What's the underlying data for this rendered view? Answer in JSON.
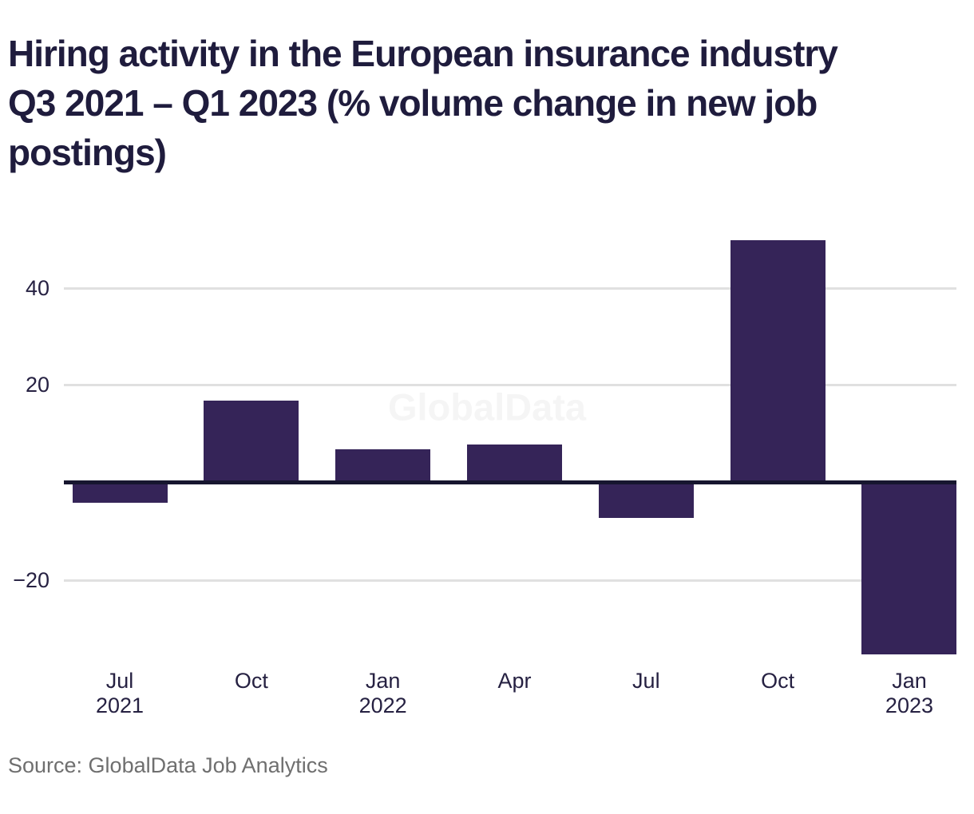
{
  "title_lines": [
    "Hiring activity in the European insurance industry",
    "Q3 2021 – Q1 2023 (% volume change in new job",
    "postings)"
  ],
  "watermark": {
    "text": "GlobalData"
  },
  "source": {
    "text": "Source: GlobalData Job Analytics"
  },
  "colors": {
    "background": "#ffffff",
    "bar": "#352458",
    "title": "#1f1c3d",
    "axis_label": "#262142",
    "gridline": "#e0e0e0",
    "baseline": "#17162f",
    "watermark": "#f5f5f5",
    "source_text": "#6f6f6f"
  },
  "chart_data": {
    "type": "bar",
    "title": "Hiring activity in the European insurance industry Q3 2021 – Q1 2023 (% volume change in new job postings)",
    "categories": [
      "Jul 2021",
      "Oct 2021",
      "Jan 2022",
      "Apr 2022",
      "Jul 2022",
      "Oct 2022",
      "Jan 2023"
    ],
    "values": [
      -4,
      17,
      7,
      8,
      -7,
      50,
      -35
    ],
    "x_tick_labels": [
      [
        "Jul",
        "2021"
      ],
      [
        "Oct"
      ],
      [
        "Jan",
        "2022"
      ],
      [
        "Apr"
      ],
      [
        "Jul"
      ],
      [
        "Oct"
      ],
      [
        "Jan",
        "2023"
      ]
    ],
    "y_ticks": [
      40,
      20,
      -20
    ],
    "y_tick_labels": [
      "40",
      "20",
      "−20"
    ],
    "xlabel": "",
    "ylabel": "",
    "ylim": [
      -38,
      55
    ],
    "grid": true,
    "legend": false,
    "unit": "%"
  }
}
